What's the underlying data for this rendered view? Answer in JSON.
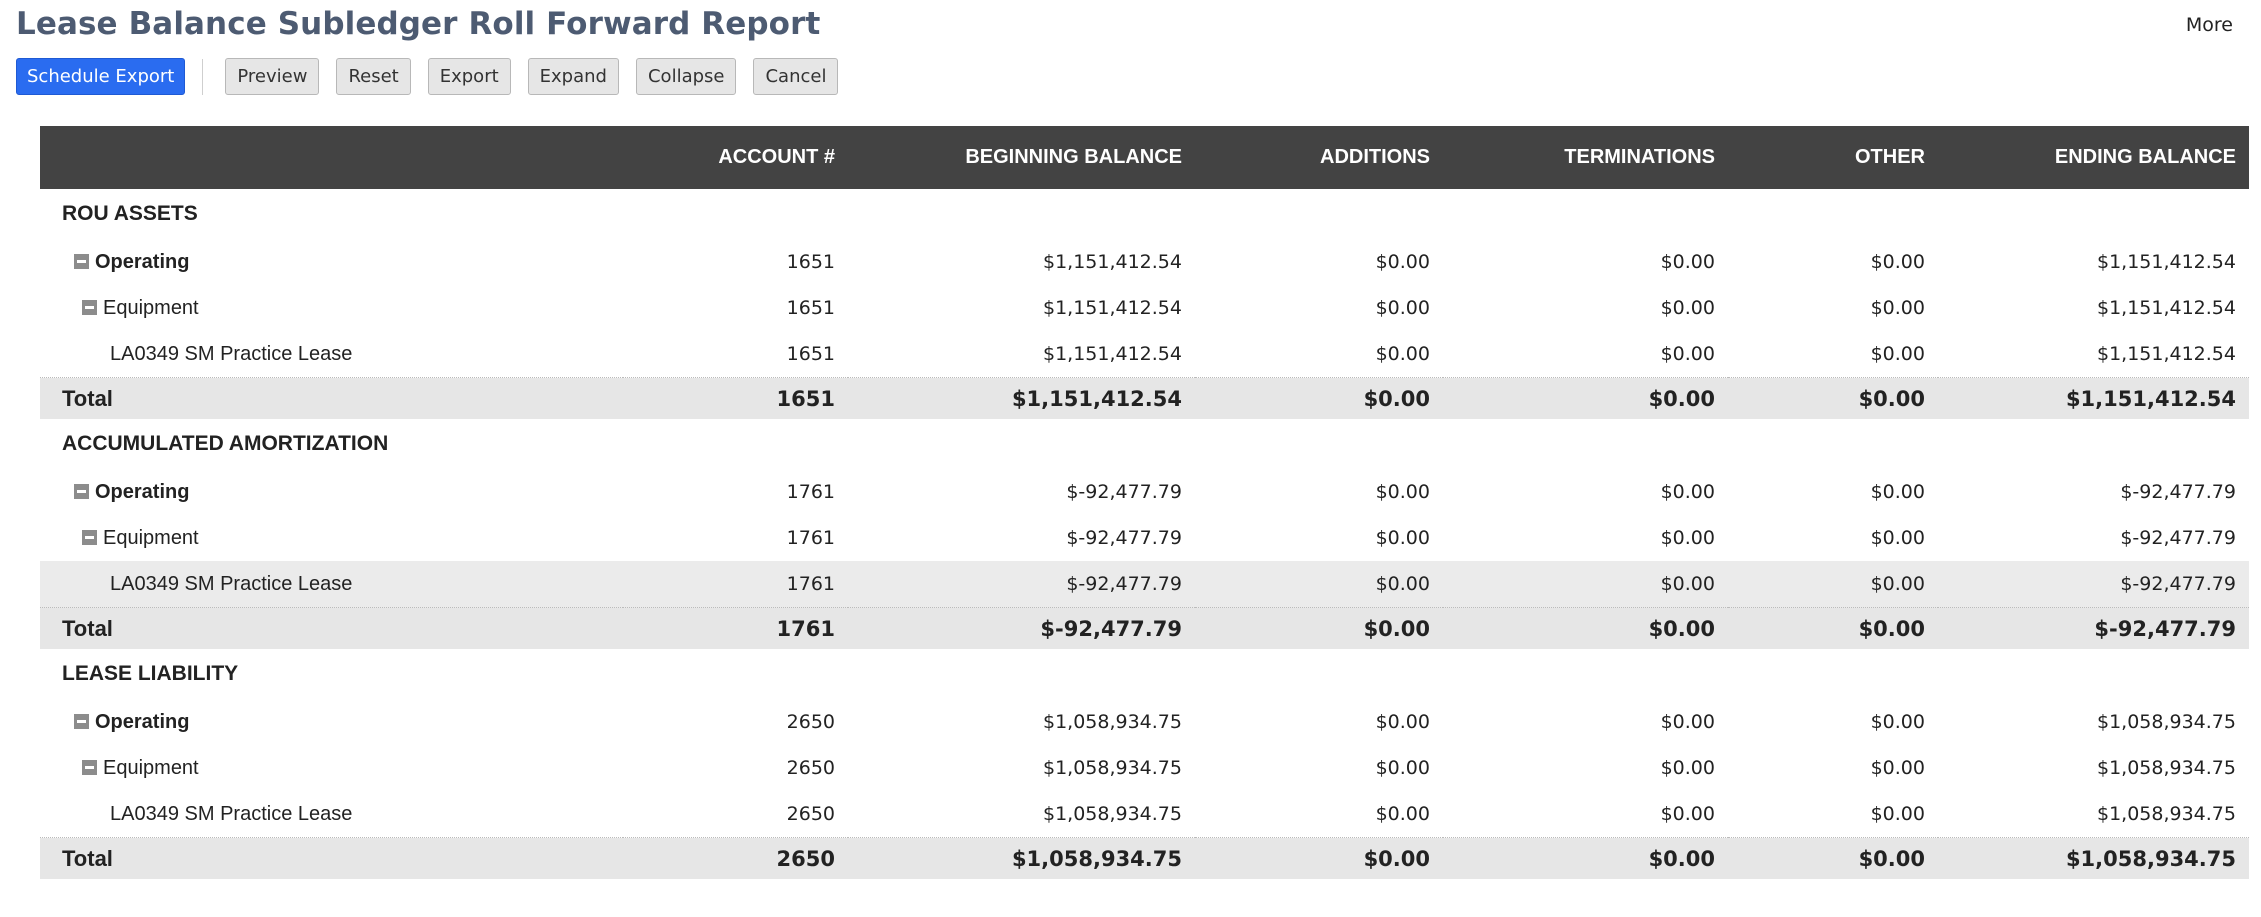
{
  "page": {
    "title": "Lease Balance Subledger Roll Forward Report",
    "more_label": "More"
  },
  "toolbar": {
    "schedule_export": "Schedule Export",
    "preview": "Preview",
    "reset": "Reset",
    "export": "Export",
    "expand": "Expand",
    "collapse": "Collapse",
    "cancel": "Cancel"
  },
  "colors": {
    "primary_button": "#2a6cf0",
    "header_bg": "#434343",
    "title": "#4d5b72"
  },
  "columns": [
    "",
    "ACCOUNT #",
    "BEGINNING BALANCE",
    "ADDITIONS",
    "TERMINATIONS",
    "OTHER",
    "ENDING BALANCE"
  ],
  "sections": [
    {
      "title": "ROU ASSETS",
      "rows": [
        {
          "name": "Operating",
          "account": "1651",
          "beginning": "$1,151,412.54",
          "additions": "$0.00",
          "terminations": "$0.00",
          "other": "$0.00",
          "ending": "$1,151,412.54"
        },
        {
          "name": "Equipment",
          "account": "1651",
          "beginning": "$1,151,412.54",
          "additions": "$0.00",
          "terminations": "$0.00",
          "other": "$0.00",
          "ending": "$1,151,412.54"
        },
        {
          "name": "LA0349 SM Practice Lease",
          "account": "1651",
          "beginning": "$1,151,412.54",
          "additions": "$0.00",
          "terminations": "$0.00",
          "other": "$0.00",
          "ending": "$1,151,412.54"
        }
      ],
      "total": {
        "label": "Total",
        "account": "1651",
        "beginning": "$1,151,412.54",
        "additions": "$0.00",
        "terminations": "$0.00",
        "other": "$0.00",
        "ending": "$1,151,412.54"
      }
    },
    {
      "title": "ACCUMULATED AMORTIZATION",
      "rows": [
        {
          "name": "Operating",
          "account": "1761",
          "beginning": "$-92,477.79",
          "additions": "$0.00",
          "terminations": "$0.00",
          "other": "$0.00",
          "ending": "$-92,477.79"
        },
        {
          "name": "Equipment",
          "account": "1761",
          "beginning": "$-92,477.79",
          "additions": "$0.00",
          "terminations": "$0.00",
          "other": "$0.00",
          "ending": "$-92,477.79"
        },
        {
          "name": "LA0349 SM Practice Lease",
          "account": "1761",
          "beginning": "$-92,477.79",
          "additions": "$0.00",
          "terminations": "$0.00",
          "other": "$0.00",
          "ending": "$-92,477.79"
        }
      ],
      "total": {
        "label": "Total",
        "account": "1761",
        "beginning": "$-92,477.79",
        "additions": "$0.00",
        "terminations": "$0.00",
        "other": "$0.00",
        "ending": "$-92,477.79"
      }
    },
    {
      "title": "LEASE LIABILITY",
      "rows": [
        {
          "name": "Operating",
          "account": "2650",
          "beginning": "$1,058,934.75",
          "additions": "$0.00",
          "terminations": "$0.00",
          "other": "$0.00",
          "ending": "$1,058,934.75"
        },
        {
          "name": "Equipment",
          "account": "2650",
          "beginning": "$1,058,934.75",
          "additions": "$0.00",
          "terminations": "$0.00",
          "other": "$0.00",
          "ending": "$1,058,934.75"
        },
        {
          "name": "LA0349 SM Practice Lease",
          "account": "2650",
          "beginning": "$1,058,934.75",
          "additions": "$0.00",
          "terminations": "$0.00",
          "other": "$0.00",
          "ending": "$1,058,934.75"
        }
      ],
      "total": {
        "label": "Total",
        "account": "2650",
        "beginning": "$1,058,934.75",
        "additions": "$0.00",
        "terminations": "$0.00",
        "other": "$0.00",
        "ending": "$1,058,934.75"
      }
    }
  ]
}
